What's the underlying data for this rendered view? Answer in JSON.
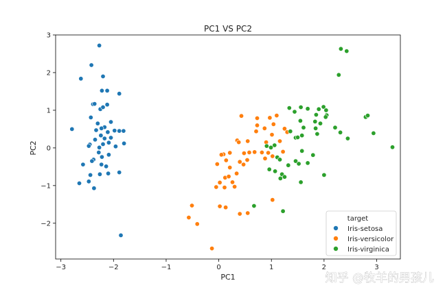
{
  "chart_data": {
    "type": "scatter",
    "title": "PC1 VS PC2",
    "xlabel": "PC1",
    "ylabel": "PC2",
    "xlim": [
      -3.1,
      3.45
    ],
    "ylim": [
      -2.95,
      3.0
    ],
    "xticks": [
      -3,
      -2,
      -1,
      0,
      1,
      2,
      3
    ],
    "yticks": [
      -2,
      -1,
      0,
      1,
      2,
      3
    ],
    "grid": false,
    "legend": {
      "title": "target",
      "placement": "bottom-right"
    },
    "series": [
      {
        "name": "Iris-setosa",
        "color": "#1f77b4",
        "points": [
          [
            -2.27,
            2.72
          ],
          [
            -2.42,
            2.2
          ],
          [
            -2.62,
            1.84
          ],
          [
            -2.2,
            1.9
          ],
          [
            -2.39,
            1.16
          ],
          [
            -2.36,
            1.17
          ],
          [
            -2.22,
            1.52
          ],
          [
            -2.12,
            1.52
          ],
          [
            -1.89,
            1.44
          ],
          [
            -2.25,
            1.03
          ],
          [
            -2.2,
            1.08
          ],
          [
            -2.12,
            1.15
          ],
          [
            -2.05,
            0.69
          ],
          [
            -2.43,
            0.81
          ],
          [
            -2.3,
            0.65
          ],
          [
            -2.17,
            0.55
          ],
          [
            -2.23,
            0.52
          ],
          [
            -1.98,
            0.46
          ],
          [
            -2.79,
            0.5
          ],
          [
            -1.89,
            0.45
          ],
          [
            -2.33,
            0.47
          ],
          [
            -2.11,
            0.42
          ],
          [
            -2.24,
            0.33
          ],
          [
            -2.35,
            0.22
          ],
          [
            -2.17,
            0.25
          ],
          [
            -2.05,
            0.27
          ],
          [
            -1.81,
            0.45
          ],
          [
            -2.2,
            0.1
          ],
          [
            -2.45,
            0.09
          ],
          [
            -2.09,
            0.14
          ],
          [
            -1.96,
            0.04
          ],
          [
            -2.27,
            0.01
          ],
          [
            -1.8,
            0.12
          ],
          [
            -2.47,
            0.05
          ],
          [
            -2.28,
            -0.12
          ],
          [
            -2.22,
            -0.24
          ],
          [
            -2.09,
            -0.18
          ],
          [
            -2.38,
            -0.31
          ],
          [
            -2.41,
            -0.35
          ],
          [
            -2.58,
            -0.44
          ],
          [
            -2.23,
            -0.44
          ],
          [
            -2.14,
            -0.49
          ],
          [
            -1.89,
            -0.65
          ],
          [
            -2.1,
            -0.68
          ],
          [
            -2.26,
            -0.7
          ],
          [
            -2.44,
            -0.72
          ],
          [
            -2.47,
            -0.89
          ],
          [
            -2.65,
            -0.94
          ],
          [
            -2.37,
            -1.07
          ],
          [
            -1.86,
            -2.32
          ]
        ]
      },
      {
        "name": "Iris-versicolor",
        "color": "#ff7f0e",
        "points": [
          [
            0.43,
            0.85
          ],
          [
            0.73,
            0.79
          ],
          [
            0.97,
            0.8
          ],
          [
            1.1,
            0.86
          ],
          [
            0.73,
            0.6
          ],
          [
            1.04,
            0.63
          ],
          [
            0.87,
            0.52
          ],
          [
            1.25,
            0.51
          ],
          [
            0.71,
            0.44
          ],
          [
            1.3,
            0.42
          ],
          [
            1.01,
            0.35
          ],
          [
            0.35,
            0.2
          ],
          [
            0.55,
            0.18
          ],
          [
            0.38,
            0.15
          ],
          [
            0.9,
            0.15
          ],
          [
            1.16,
            0.18
          ],
          [
            0.09,
            -0.17
          ],
          [
            0.21,
            -0.13
          ],
          [
            0.05,
            -0.18
          ],
          [
            0.48,
            -0.14
          ],
          [
            0.58,
            -0.12
          ],
          [
            0.68,
            -0.11
          ],
          [
            0.82,
            -0.12
          ],
          [
            0.94,
            -0.13
          ],
          [
            1.22,
            -0.1
          ],
          [
            0.4,
            -0.37
          ],
          [
            0.54,
            -0.32
          ],
          [
            -0.03,
            -0.43
          ],
          [
            0.14,
            -0.33
          ],
          [
            0.88,
            -0.28
          ],
          [
            1.02,
            -0.22
          ],
          [
            0.21,
            -0.52
          ],
          [
            0.47,
            -0.44
          ],
          [
            0.12,
            -0.79
          ],
          [
            0.19,
            -0.76
          ],
          [
            0.34,
            -0.68
          ],
          [
            0.02,
            -0.92
          ],
          [
            0.26,
            -0.91
          ],
          [
            0.11,
            -1.05
          ],
          [
            -0.05,
            -1.04
          ],
          [
            0.3,
            -1.03
          ],
          [
            0.13,
            -1.58
          ],
          [
            0.02,
            -1.55
          ],
          [
            -0.51,
            -1.53
          ],
          [
            -0.57,
            -1.85
          ],
          [
            -0.41,
            -2.02
          ],
          [
            0.4,
            -1.75
          ],
          [
            0.55,
            -1.73
          ],
          [
            1.02,
            -1.38
          ],
          [
            -0.13,
            -2.67
          ]
        ]
      },
      {
        "name": "Iris-virginica",
        "color": "#2ca02c",
        "points": [
          [
            2.32,
            2.63
          ],
          [
            2.43,
            2.57
          ],
          [
            2.28,
            1.94
          ],
          [
            1.34,
            1.06
          ],
          [
            1.56,
            1.08
          ],
          [
            1.69,
            1.04
          ],
          [
            1.9,
            1.03
          ],
          [
            1.99,
            1.09
          ],
          [
            2.04,
            1.0
          ],
          [
            1.44,
            0.96
          ],
          [
            2.05,
            0.87
          ],
          [
            1.85,
            0.88
          ],
          [
            2.03,
            0.82
          ],
          [
            2.79,
            0.82
          ],
          [
            2.83,
            0.86
          ],
          [
            1.55,
            0.72
          ],
          [
            1.83,
            0.7
          ],
          [
            1.93,
            0.65
          ],
          [
            1.61,
            0.54
          ],
          [
            1.84,
            0.52
          ],
          [
            2.21,
            0.54
          ],
          [
            1.36,
            0.44
          ],
          [
            2.31,
            0.41
          ],
          [
            1.87,
            0.37
          ],
          [
            2.94,
            0.39
          ],
          [
            1.58,
            0.33
          ],
          [
            1.46,
            0.27
          ],
          [
            1.5,
            0.28
          ],
          [
            2.45,
            0.25
          ],
          [
            1.06,
            0.07
          ],
          [
            0.91,
            0.05
          ],
          [
            0.99,
            0.01
          ],
          [
            1.58,
            -0.08
          ],
          [
            3.3,
            0.02
          ],
          [
            1.11,
            -0.25
          ],
          [
            1.16,
            -0.31
          ],
          [
            1.79,
            -0.19
          ],
          [
            1.46,
            -0.35
          ],
          [
            1.69,
            -0.4
          ],
          [
            1.52,
            -0.42
          ],
          [
            1.32,
            -0.46
          ],
          [
            0.96,
            -0.57
          ],
          [
            1.07,
            -0.62
          ],
          [
            1.2,
            -0.7
          ],
          [
            1.25,
            -0.77
          ],
          [
            1.17,
            -0.81
          ],
          [
            2.0,
            -0.72
          ],
          [
            1.56,
            -0.91
          ],
          [
            0.67,
            -1.54
          ],
          [
            1.22,
            -1.68
          ]
        ]
      }
    ]
  },
  "watermark": "知乎 @牧羊的男孩儿"
}
